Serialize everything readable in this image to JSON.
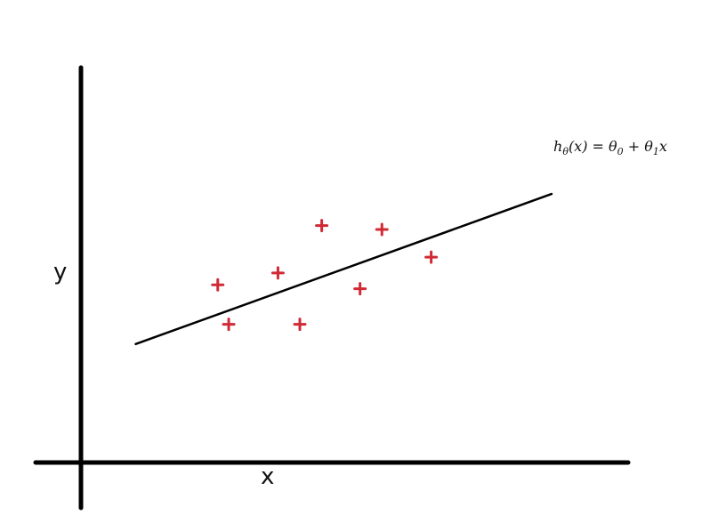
{
  "chart_data": {
    "type": "scatter",
    "xlabel": "x",
    "ylabel": "y",
    "xlim": [
      0,
      10
    ],
    "ylim": [
      0,
      10
    ],
    "grid": false,
    "colors": {
      "axes": "#000000",
      "points": "#d12a35",
      "fit_line": "#000000"
    },
    "point_marker": "plus",
    "points": [
      {
        "x": 2.5,
        "y": 4.5
      },
      {
        "x": 2.7,
        "y": 3.5
      },
      {
        "x": 3.6,
        "y": 4.8
      },
      {
        "x": 4.0,
        "y": 3.5
      },
      {
        "x": 4.4,
        "y": 6.0
      },
      {
        "x": 5.1,
        "y": 4.4
      },
      {
        "x": 5.5,
        "y": 5.9
      },
      {
        "x": 6.4,
        "y": 5.2
      }
    ],
    "fit_line": {
      "x": [
        1.0,
        8.6
      ],
      "y": [
        3.0,
        6.8
      ]
    },
    "annotation": {
      "h": "h",
      "h_sub": "θ",
      "rest": "(x) =  θ",
      "sub0": "0",
      "plus": " +  θ",
      "sub1": "1",
      "tail": "x"
    }
  }
}
